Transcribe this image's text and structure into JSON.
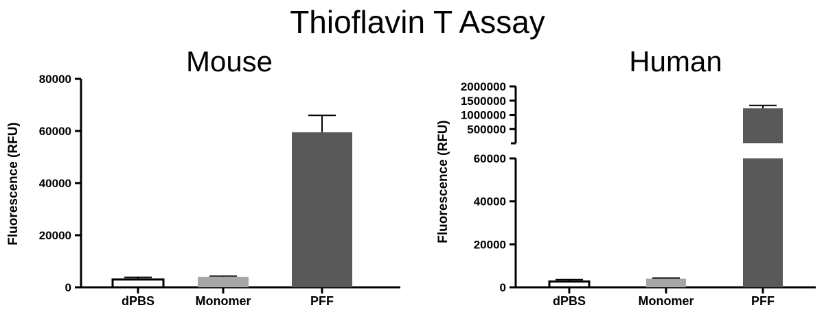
{
  "figure": {
    "title": "Thioflavin T Assay"
  },
  "chart_data": [
    {
      "type": "bar",
      "title": "Mouse",
      "xlabel": "",
      "ylabel": "Fluorescence (RFU)",
      "categories": [
        "dPBS",
        "Monomer",
        "PFF"
      ],
      "values": [
        3000,
        4000,
        59500
      ],
      "errors": [
        800,
        300,
        6500
      ],
      "ylim": [
        0,
        80000
      ],
      "yticks": [
        "0",
        "20000",
        "40000",
        "60000",
        "80000"
      ],
      "bar_fills": [
        "#ffffff",
        "#a6a6a6",
        "#595959"
      ],
      "grid": false
    },
    {
      "type": "bar",
      "title": "Human",
      "xlabel": "",
      "ylabel": "Fluorescence (RFU)",
      "categories": [
        "dPBS",
        "Monomer",
        "PFF"
      ],
      "values": [
        2700,
        4000,
        1230000
      ],
      "errors": [
        900,
        300,
        100000
      ],
      "axis_break": true,
      "ylim_lower": [
        0,
        60000
      ],
      "ylim_upper": [
        0,
        2000000
      ],
      "yticks_lower": [
        "0",
        "20000",
        "40000",
        "60000"
      ],
      "yticks_upper": [
        "500000",
        "1000000",
        "1500000",
        "2000000"
      ],
      "bar_fills": [
        "#ffffff",
        "#a6a6a6",
        "#595959"
      ],
      "grid": false
    }
  ]
}
